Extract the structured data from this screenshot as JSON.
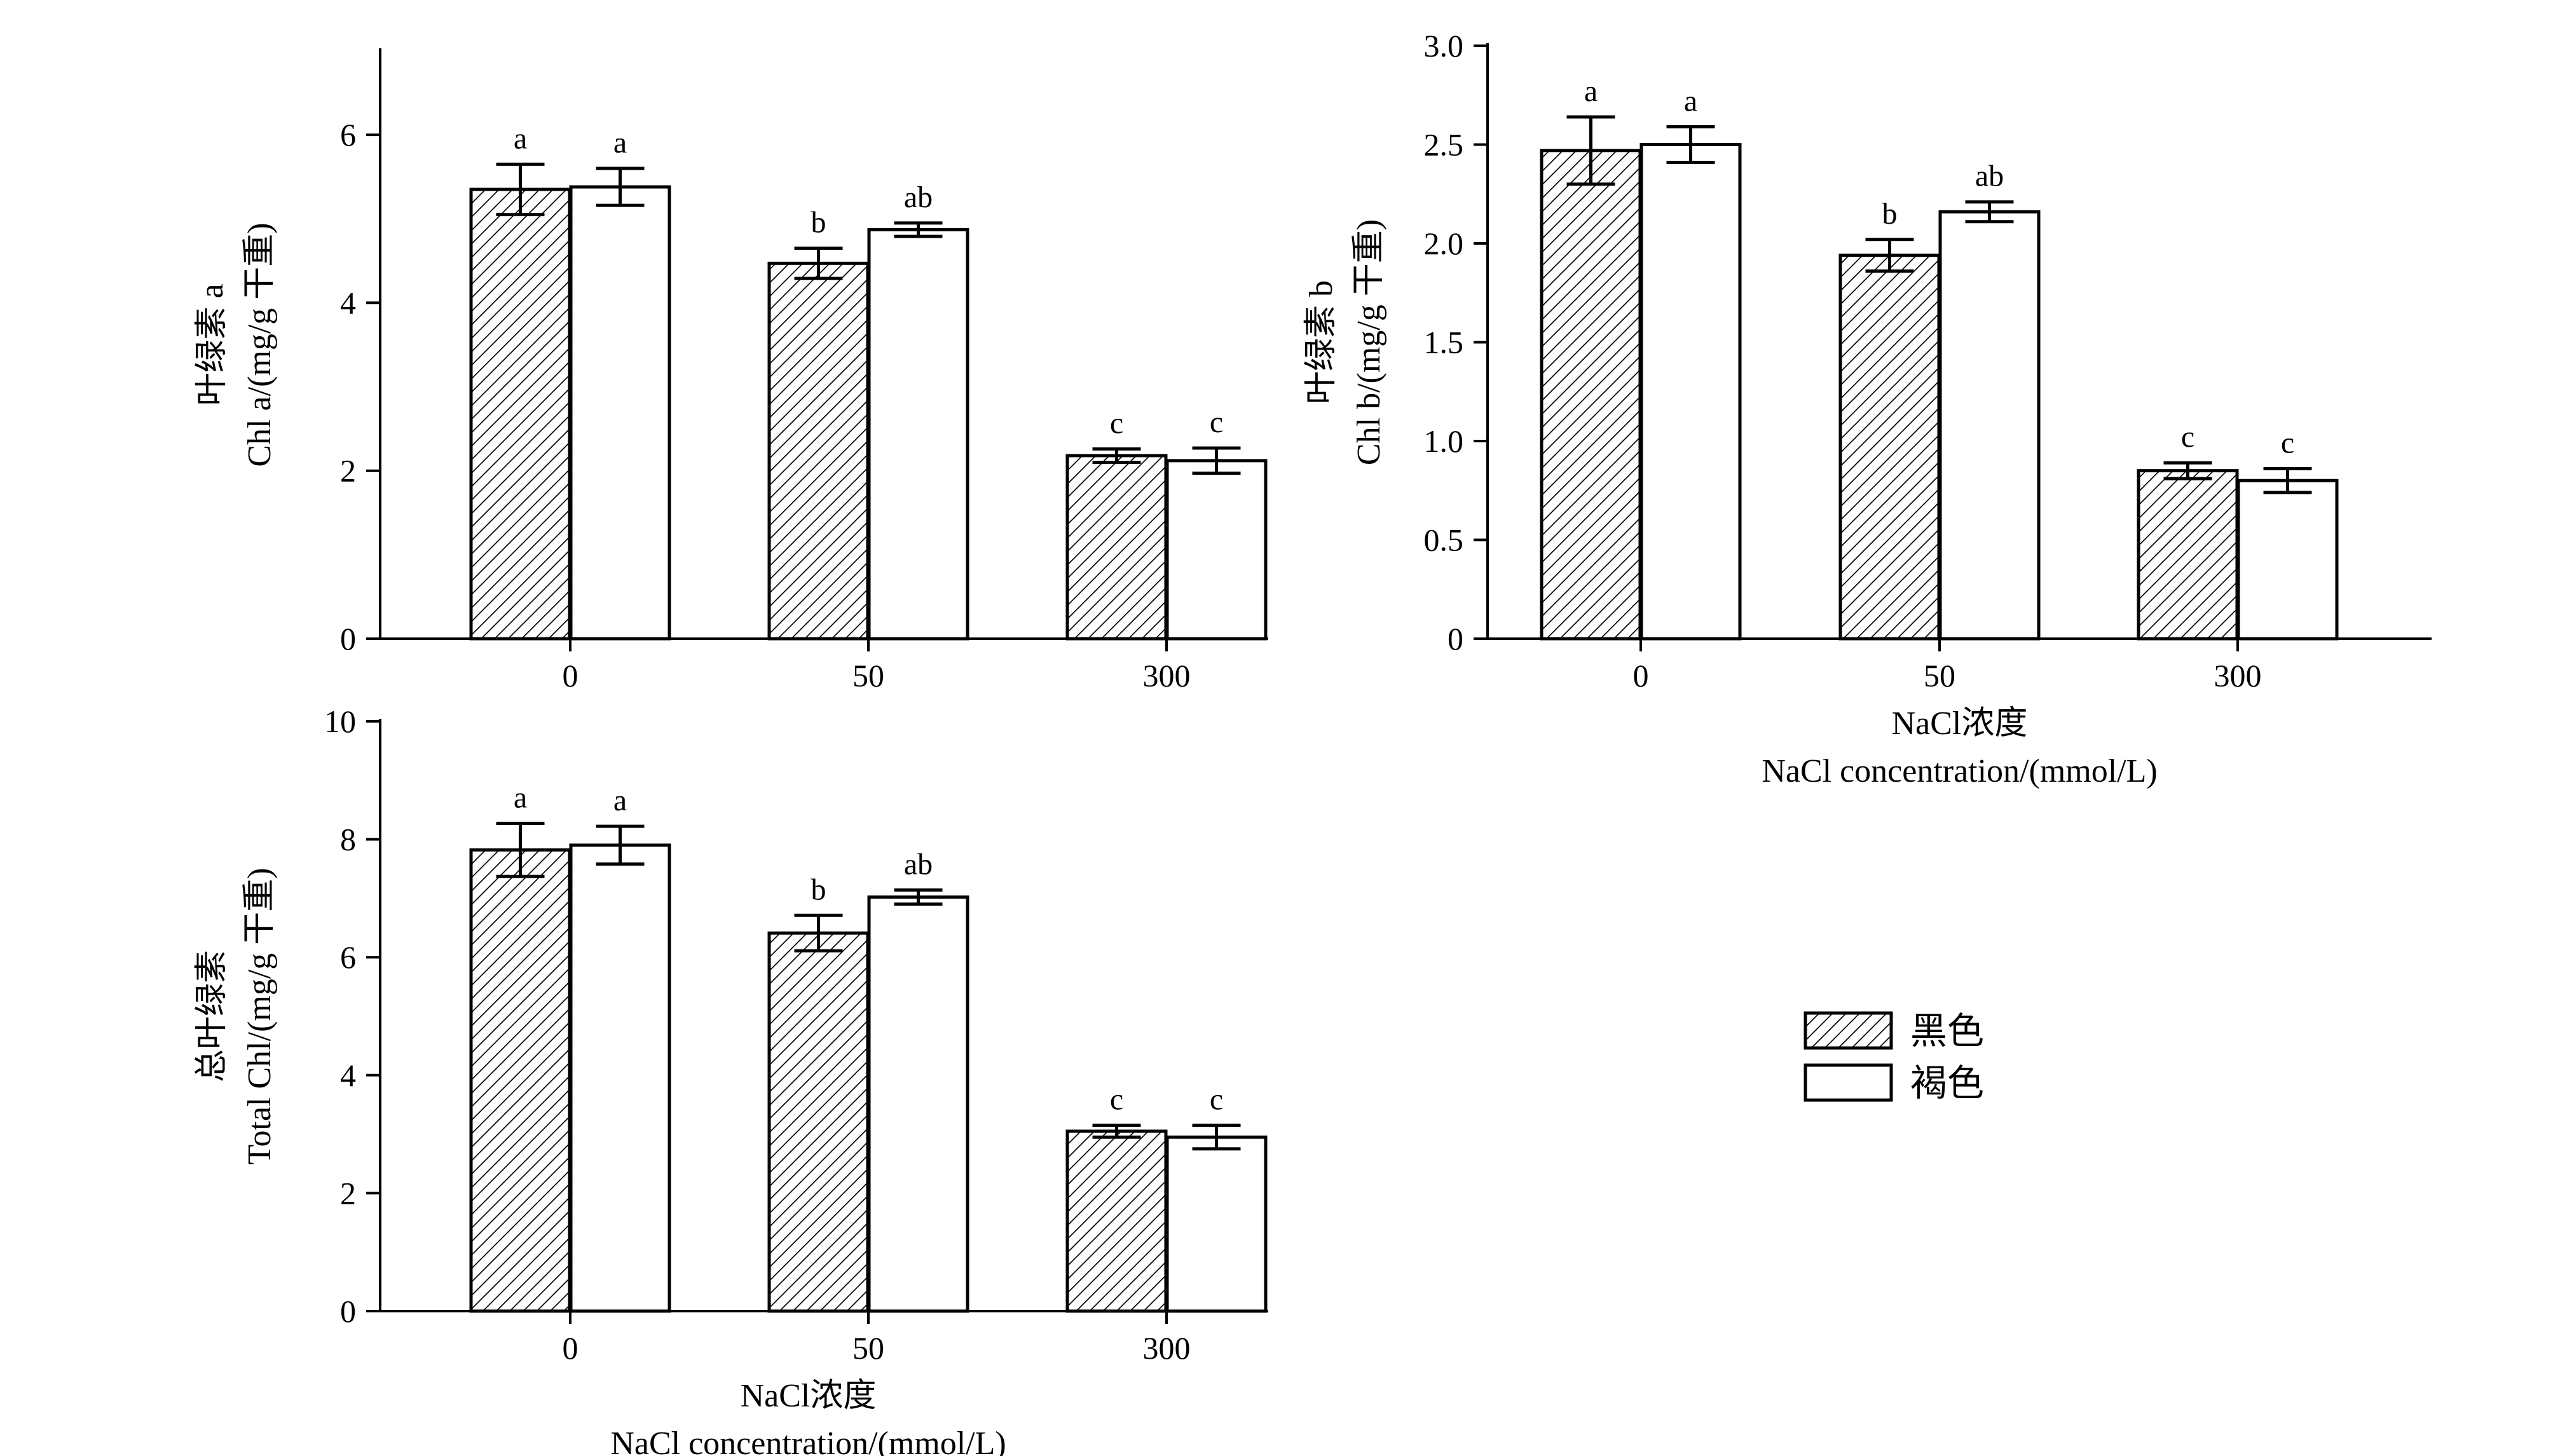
{
  "colors": {
    "hatched_fill": "#ffffff",
    "hatch_line": "#000000",
    "open_fill": "#ffffff",
    "stroke": "#000000"
  },
  "legend": [
    {
      "label": "黑色",
      "pattern": "hatched"
    },
    {
      "label": "褐色",
      "pattern": "open"
    }
  ],
  "chart_data": [
    {
      "id": "chl-a",
      "type": "bar",
      "title": "",
      "ylabel": [
        "叶绿素 a",
        "Chl a/(mg/g 干重)"
      ],
      "xlabel": [],
      "categories": [
        "0",
        "50",
        "300"
      ],
      "ylim": [
        0,
        7
      ],
      "yticks": [
        0,
        2,
        4,
        6
      ],
      "grid": false,
      "series": [
        {
          "name": "黑色",
          "pattern": "hatched",
          "values": [
            5.35,
            4.47,
            2.18
          ],
          "errors": [
            0.3,
            0.18,
            0.08
          ],
          "letters": [
            "a",
            "b",
            "c"
          ]
        },
        {
          "name": "褐色",
          "pattern": "open",
          "values": [
            5.38,
            4.87,
            2.12
          ],
          "errors": [
            0.22,
            0.08,
            0.15
          ],
          "letters": [
            "a",
            "ab",
            "c"
          ]
        }
      ]
    },
    {
      "id": "chl-b",
      "type": "bar",
      "title": "",
      "ylabel": [
        "叶绿素 b",
        "Chl b/(mg/g 干重)"
      ],
      "xlabel": [
        "NaCl浓度",
        "NaCl concentration/(mmol/L)"
      ],
      "categories": [
        "0",
        "50",
        "300"
      ],
      "ylim": [
        0,
        3.0
      ],
      "yticks": [
        0,
        0.5,
        1.0,
        1.5,
        2.0,
        2.5,
        3.0
      ],
      "ytick_labels": [
        "0",
        "0.5",
        "1.0",
        "1.5",
        "2.0",
        "2.5",
        "3.0"
      ],
      "grid": false,
      "series": [
        {
          "name": "黑色",
          "pattern": "hatched",
          "values": [
            2.47,
            1.94,
            0.85
          ],
          "errors": [
            0.17,
            0.08,
            0.04
          ],
          "letters": [
            "a",
            "b",
            "c"
          ]
        },
        {
          "name": "褐色",
          "pattern": "open",
          "values": [
            2.5,
            2.16,
            0.8
          ],
          "errors": [
            0.09,
            0.05,
            0.06
          ],
          "letters": [
            "a",
            "ab",
            "c"
          ]
        }
      ]
    },
    {
      "id": "total-chl",
      "type": "bar",
      "title": "",
      "ylabel": [
        "总叶绿素",
        "Total Chl/(mg/g 干重)"
      ],
      "xlabel": [
        "NaCl浓度",
        "NaCl concentration/(mmol/L)"
      ],
      "categories": [
        "0",
        "50",
        "300"
      ],
      "ylim": [
        0,
        10
      ],
      "yticks": [
        0,
        2,
        4,
        6,
        8,
        10
      ],
      "grid": false,
      "series": [
        {
          "name": "黑色",
          "pattern": "hatched",
          "values": [
            7.82,
            6.41,
            3.05
          ],
          "errors": [
            0.45,
            0.3,
            0.1
          ],
          "letters": [
            "a",
            "b",
            "c"
          ]
        },
        {
          "name": "褐色",
          "pattern": "open",
          "values": [
            7.9,
            7.02,
            2.95
          ],
          "errors": [
            0.32,
            0.12,
            0.2
          ],
          "letters": [
            "a",
            "ab",
            "c"
          ]
        }
      ]
    }
  ]
}
